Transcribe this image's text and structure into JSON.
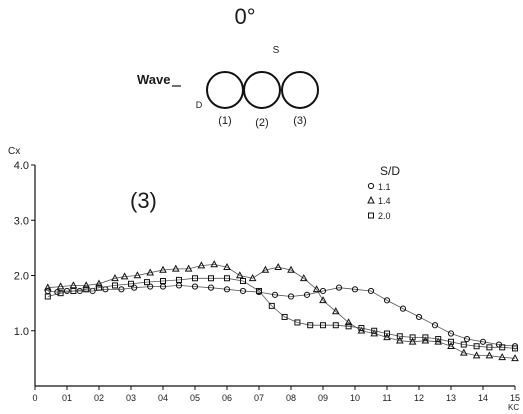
{
  "chart_data": {
    "type": "scatter",
    "title": "",
    "annotation": "(3)",
    "ylabel": "Cx",
    "xlabel": "KC",
    "xlim": [
      0,
      15
    ],
    "ylim": [
      0,
      4
    ],
    "x_ticks": [
      "0",
      "01",
      "02",
      "03",
      "04",
      "05",
      "06",
      "07",
      "08",
      "09",
      "10",
      "11",
      "12",
      "13",
      "14",
      "15"
    ],
    "y_ticks": [
      "1.0",
      "2.0",
      "3.0",
      "4.0"
    ],
    "legend": {
      "title": "S/D",
      "placement": "top-right",
      "entries": [
        "1.1",
        "1.4",
        "2.0"
      ]
    },
    "series": [
      {
        "name": "1.1",
        "marker": "circle",
        "points": [
          [
            0.4,
            1.72
          ],
          [
            0.7,
            1.7
          ],
          [
            1.0,
            1.72
          ],
          [
            1.4,
            1.72
          ],
          [
            1.8,
            1.72
          ],
          [
            2.2,
            1.75
          ],
          [
            2.7,
            1.75
          ],
          [
            3.1,
            1.78
          ],
          [
            3.6,
            1.8
          ],
          [
            4.0,
            1.8
          ],
          [
            4.5,
            1.82
          ],
          [
            5.0,
            1.8
          ],
          [
            5.5,
            1.78
          ],
          [
            6.0,
            1.75
          ],
          [
            6.5,
            1.72
          ],
          [
            7.0,
            1.7
          ],
          [
            7.5,
            1.65
          ],
          [
            8.0,
            1.62
          ],
          [
            8.5,
            1.65
          ],
          [
            9.0,
            1.72
          ],
          [
            9.5,
            1.78
          ],
          [
            10.0,
            1.75
          ],
          [
            10.5,
            1.72
          ],
          [
            11.0,
            1.55
          ],
          [
            11.5,
            1.4
          ],
          [
            12.0,
            1.25
          ],
          [
            12.5,
            1.1
          ],
          [
            13.0,
            0.95
          ],
          [
            13.5,
            0.85
          ],
          [
            14.0,
            0.8
          ],
          [
            14.5,
            0.75
          ],
          [
            15.0,
            0.72
          ]
        ]
      },
      {
        "name": "1.4",
        "marker": "triangle",
        "points": [
          [
            0.4,
            1.78
          ],
          [
            0.8,
            1.8
          ],
          [
            1.2,
            1.82
          ],
          [
            1.6,
            1.82
          ],
          [
            2.0,
            1.85
          ],
          [
            2.5,
            1.95
          ],
          [
            2.8,
            1.98
          ],
          [
            3.2,
            2.0
          ],
          [
            3.6,
            2.05
          ],
          [
            4.0,
            2.1
          ],
          [
            4.4,
            2.12
          ],
          [
            4.8,
            2.12
          ],
          [
            5.2,
            2.18
          ],
          [
            5.6,
            2.2
          ],
          [
            6.0,
            2.15
          ],
          [
            6.4,
            2.0
          ],
          [
            6.8,
            1.95
          ],
          [
            7.2,
            2.1
          ],
          [
            7.6,
            2.15
          ],
          [
            8.0,
            2.1
          ],
          [
            8.4,
            1.95
          ],
          [
            8.8,
            1.75
          ],
          [
            9.0,
            1.55
          ],
          [
            9.4,
            1.35
          ],
          [
            9.8,
            1.15
          ],
          [
            10.2,
            1.0
          ],
          [
            10.6,
            0.95
          ],
          [
            11.0,
            0.88
          ],
          [
            11.4,
            0.82
          ],
          [
            11.8,
            0.8
          ],
          [
            12.2,
            0.82
          ],
          [
            12.6,
            0.8
          ],
          [
            13.0,
            0.72
          ],
          [
            13.4,
            0.6
          ],
          [
            13.8,
            0.55
          ],
          [
            14.2,
            0.55
          ],
          [
            14.6,
            0.52
          ],
          [
            15.0,
            0.5
          ]
        ]
      },
      {
        "name": "2.0",
        "marker": "square",
        "points": [
          [
            0.4,
            1.62
          ],
          [
            0.8,
            1.68
          ],
          [
            1.2,
            1.72
          ],
          [
            1.6,
            1.75
          ],
          [
            2.0,
            1.78
          ],
          [
            2.5,
            1.82
          ],
          [
            3.0,
            1.85
          ],
          [
            3.5,
            1.88
          ],
          [
            4.0,
            1.9
          ],
          [
            4.5,
            1.92
          ],
          [
            5.0,
            1.95
          ],
          [
            5.5,
            1.95
          ],
          [
            6.0,
            1.95
          ],
          [
            6.5,
            1.9
          ],
          [
            7.0,
            1.72
          ],
          [
            7.4,
            1.45
          ],
          [
            7.8,
            1.25
          ],
          [
            8.2,
            1.15
          ],
          [
            8.6,
            1.1
          ],
          [
            9.0,
            1.1
          ],
          [
            9.4,
            1.1
          ],
          [
            9.8,
            1.08
          ],
          [
            10.2,
            1.05
          ],
          [
            10.6,
            1.0
          ],
          [
            11.0,
            0.95
          ],
          [
            11.4,
            0.9
          ],
          [
            11.8,
            0.88
          ],
          [
            12.2,
            0.88
          ],
          [
            12.6,
            0.85
          ],
          [
            13.0,
            0.8
          ],
          [
            13.4,
            0.75
          ],
          [
            13.8,
            0.72
          ],
          [
            14.2,
            0.7
          ],
          [
            14.6,
            0.7
          ],
          [
            15.0,
            0.68
          ]
        ]
      }
    ]
  },
  "diagram": {
    "angle_label": "0°",
    "spacing_label": "S",
    "wave_label": "Wave",
    "diameter_label": "D",
    "cylinder_labels": [
      "(1)",
      "(2)",
      "(3)"
    ]
  }
}
